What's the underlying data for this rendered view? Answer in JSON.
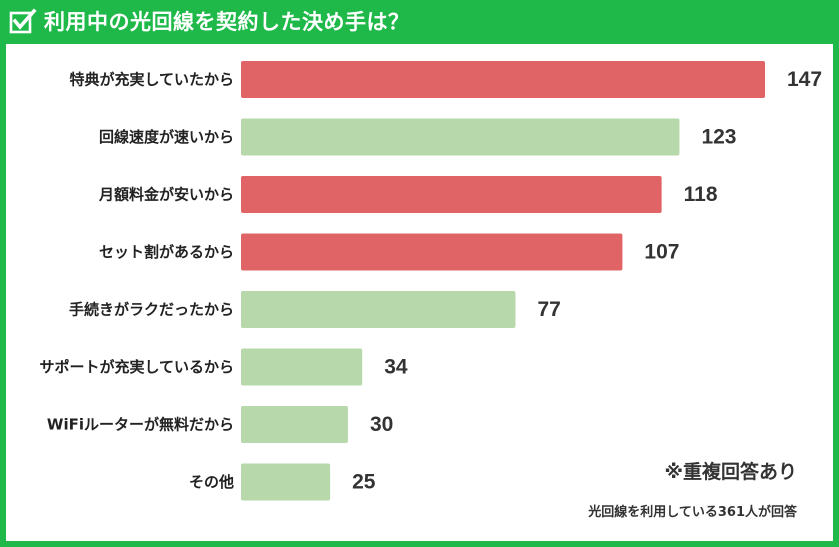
{
  "title": "利用中の光回線を契約した決め手は？",
  "notes": {
    "multiple_answers": "※重複回答あり",
    "respondents": "光回線を利用している361人が回答"
  },
  "colors": {
    "frame": "#1fb94a",
    "highlight_bar": "#e06466",
    "normal_bar": "#b7d8aa"
  },
  "chart_data": {
    "type": "bar",
    "orientation": "horizontal",
    "categories": [
      "特典が充実していたから",
      "回線速度が速いから",
      "月額料金が安いから",
      "セット割があるから",
      "手続きがラクだったから",
      "サポートが充実しているから",
      "WiFiルーターが無料だから",
      "その他"
    ],
    "values": [
      147,
      123,
      118,
      107,
      77,
      34,
      30,
      25
    ],
    "highlighted": [
      true,
      false,
      true,
      true,
      false,
      false,
      false,
      false
    ],
    "xlim": [
      0,
      147
    ],
    "grid": false,
    "legend": "none"
  }
}
